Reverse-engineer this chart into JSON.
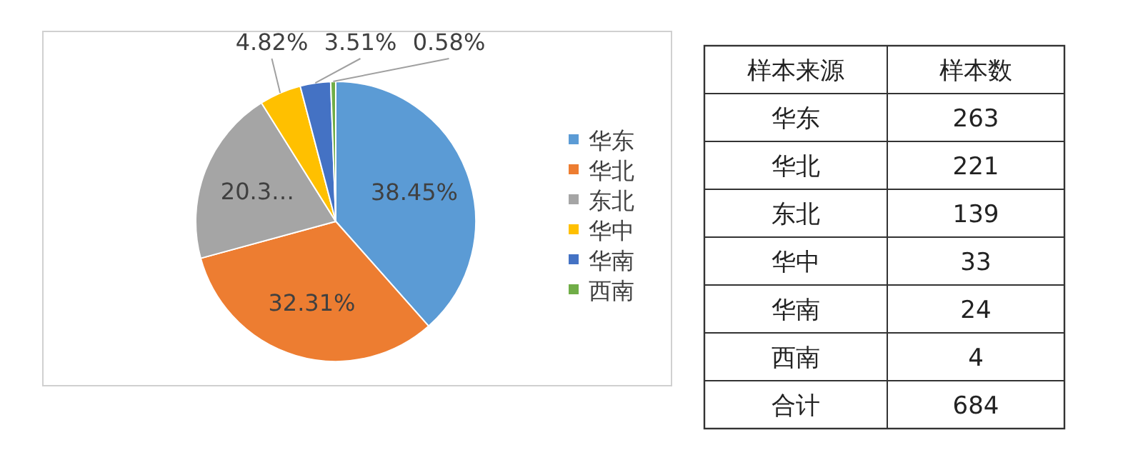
{
  "chart_data": [
    {
      "type": "pie",
      "categories": [
        "华东",
        "华北",
        "东北",
        "华中",
        "华南",
        "西南"
      ],
      "values": [
        38.45,
        32.31,
        20.33,
        4.82,
        3.51,
        0.58
      ],
      "value_labels": [
        "38.45%",
        "32.31%",
        "20.3…",
        "4.82%",
        "3.51%",
        "0.58%"
      ],
      "colors": [
        "#5b9bd5",
        "#ed7d31",
        "#a5a5a5",
        "#ffc000",
        "#4472c4",
        "#70ad47"
      ],
      "legend": "right"
    },
    {
      "type": "other",
      "annotations": [
        "样本来源",
        "样本数",
        "华东",
        "263",
        "华北",
        "221",
        "东北",
        "139",
        "华中",
        "33",
        "华南",
        "24",
        "西南",
        "4",
        "合计",
        "684"
      ]
    }
  ]
}
